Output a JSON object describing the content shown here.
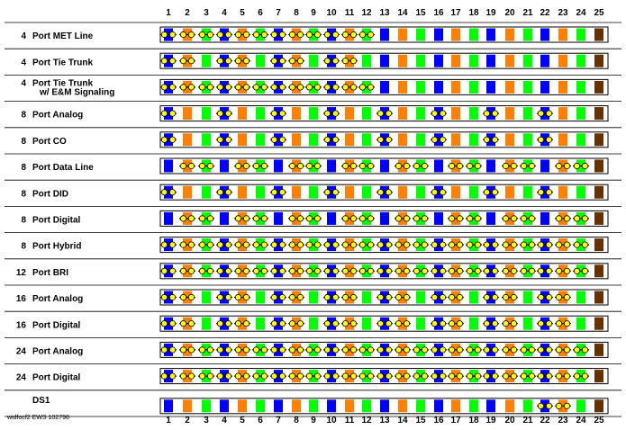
{
  "column_numbers": [
    "1",
    "2",
    "3",
    "4",
    "5",
    "6",
    "7",
    "8",
    "9",
    "10",
    "11",
    "12",
    "13",
    "14",
    "15",
    "16",
    "17",
    "18",
    "19",
    "20",
    "21",
    "22",
    "23",
    "24",
    "25"
  ],
  "colors": {
    "blue": "#0000ff",
    "orange": "#ff7f00",
    "green": "#00ff00",
    "brown": "#663300",
    "contact": "#ffff00",
    "outline": "#000000"
  },
  "column_colors": [
    "blue",
    "orange",
    "green",
    "blue",
    "orange",
    "green",
    "blue",
    "orange",
    "green",
    "blue",
    "orange",
    "green",
    "blue",
    "orange",
    "green",
    "blue",
    "orange",
    "green",
    "blue",
    "orange",
    "green",
    "blue",
    "orange",
    "green",
    "brown"
  ],
  "rows": [
    {
      "count": "4",
      "label": [
        "Port MET Line"
      ],
      "pins": [
        1,
        2,
        3,
        4,
        5,
        6,
        7,
        8,
        9,
        10,
        11,
        12
      ]
    },
    {
      "count": "4",
      "label": [
        "Port Tie Trunk"
      ],
      "pins": [
        1,
        2,
        4,
        5,
        7,
        8,
        10,
        11
      ]
    },
    {
      "count": "4",
      "label": [
        "Port Tie Trunk",
        "w/ E&M Signaling"
      ],
      "pins": [
        1,
        2,
        3,
        4,
        5,
        6,
        7,
        8,
        9,
        10,
        11,
        12
      ]
    },
    {
      "count": "8",
      "label": [
        "Port Analog"
      ],
      "pins": [
        1,
        4,
        7,
        10,
        13,
        16,
        19,
        22
      ]
    },
    {
      "count": "8",
      "label": [
        "Port CO"
      ],
      "pins": [
        1,
        4,
        7,
        10,
        13,
        16,
        19,
        22
      ]
    },
    {
      "count": "8",
      "label": [
        "Port Data Line"
      ],
      "pins": [
        2,
        3,
        5,
        6,
        8,
        9,
        11,
        12,
        14,
        15,
        17,
        18,
        20,
        21,
        23,
        24
      ]
    },
    {
      "count": "8",
      "label": [
        "Port DID"
      ],
      "pins": [
        1,
        4,
        7,
        10,
        13,
        16,
        19,
        22
      ]
    },
    {
      "count": "8",
      "label": [
        "Port Digital"
      ],
      "pins": [
        2,
        3,
        5,
        6,
        8,
        9,
        11,
        12,
        14,
        15,
        17,
        18,
        20,
        21,
        23,
        24
      ]
    },
    {
      "count": "8",
      "label": [
        "Port Hybrid"
      ],
      "pins": [
        1,
        2,
        3,
        4,
        5,
        6,
        7,
        8,
        9,
        10,
        11,
        12,
        13,
        14,
        15,
        16,
        17,
        18,
        19,
        20,
        21,
        22,
        23,
        24
      ]
    },
    {
      "count": "12",
      "label": [
        "Port BRI"
      ],
      "pins": [
        1,
        2,
        3,
        4,
        5,
        6,
        7,
        8,
        9,
        10,
        11,
        12,
        13,
        14,
        15,
        16,
        17,
        18,
        19,
        20,
        21,
        22,
        23,
        24
      ]
    },
    {
      "count": "16",
      "label": [
        "Port Analog"
      ],
      "pins": [
        1,
        2,
        4,
        5,
        7,
        8,
        10,
        11,
        13,
        14,
        16,
        17,
        19,
        20,
        22,
        23
      ]
    },
    {
      "count": "16",
      "label": [
        "Port Digital"
      ],
      "pins": [
        1,
        2,
        4,
        5,
        7,
        8,
        10,
        11,
        13,
        14,
        16,
        17,
        19,
        20,
        22,
        23
      ]
    },
    {
      "count": "24",
      "label": [
        "Port Analog"
      ],
      "pins": [
        1,
        2,
        3,
        4,
        5,
        6,
        7,
        8,
        9,
        10,
        11,
        12,
        13,
        14,
        15,
        16,
        17,
        18,
        19,
        20,
        21,
        22,
        23,
        24
      ]
    },
    {
      "count": "24",
      "label": [
        "Port Digital"
      ],
      "pins": [
        1,
        2,
        3,
        4,
        5,
        6,
        7,
        8,
        9,
        10,
        11,
        12,
        13,
        14,
        15,
        16,
        17,
        18,
        19,
        20,
        21,
        22,
        23,
        24
      ]
    },
    {
      "count": "",
      "label": [
        "DS1"
      ],
      "pins": [
        22,
        23
      ]
    }
  ],
  "footer_code": "widfocf2 EWS 102798"
}
